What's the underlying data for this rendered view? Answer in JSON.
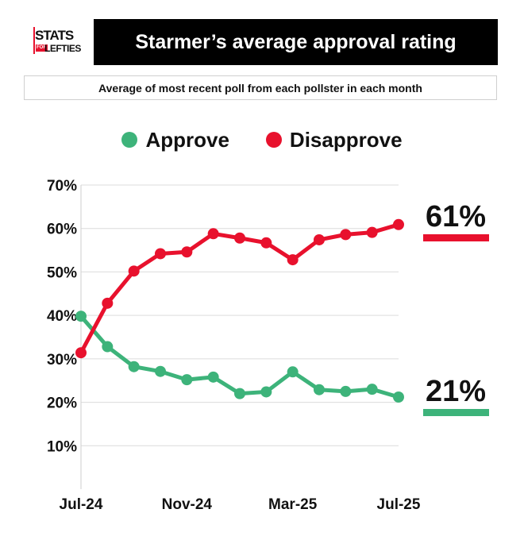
{
  "logo": {
    "line1": "STATS",
    "line2": "FOR",
    "line3": "LEFTIES"
  },
  "header": {
    "title": "Starmer’s average approval rating",
    "subtitle": "Average of most recent poll from each pollster in each month"
  },
  "colors": {
    "approve": "#3db37a",
    "disapprove": "#e8112d",
    "grid": "#dcdcdc"
  },
  "chart_data": {
    "type": "line",
    "x": [
      "Jul-24",
      "Aug-24",
      "Sep-24",
      "Oct-24",
      "Nov-24",
      "Dec-24",
      "Jan-25",
      "Feb-25",
      "Mar-25",
      "Apr-25",
      "May-25",
      "Jun-25",
      "Jul-25"
    ],
    "x_tick_labels": [
      "Jul-24",
      "Nov-24",
      "Mar-25",
      "Jul-25"
    ],
    "y_tick_labels": [
      "10%",
      "20%",
      "30%",
      "40%",
      "50%",
      "60%",
      "70%"
    ],
    "ylim": [
      0,
      70
    ],
    "grid": true,
    "legend_position": "top",
    "series": [
      {
        "name": "Approve",
        "color": "#3db37a",
        "values": [
          39.8,
          32.8,
          28.2,
          27.1,
          25.2,
          25.8,
          22.0,
          22.4,
          27.0,
          22.9,
          22.5,
          23.0,
          21.2
        ],
        "end_label": "21%"
      },
      {
        "name": "Disapprove",
        "color": "#e8112d",
        "values": [
          31.4,
          42.8,
          50.2,
          54.2,
          54.6,
          58.8,
          57.8,
          56.7,
          52.8,
          57.4,
          58.6,
          59.1,
          60.9
        ],
        "end_label": "61%"
      }
    ]
  }
}
